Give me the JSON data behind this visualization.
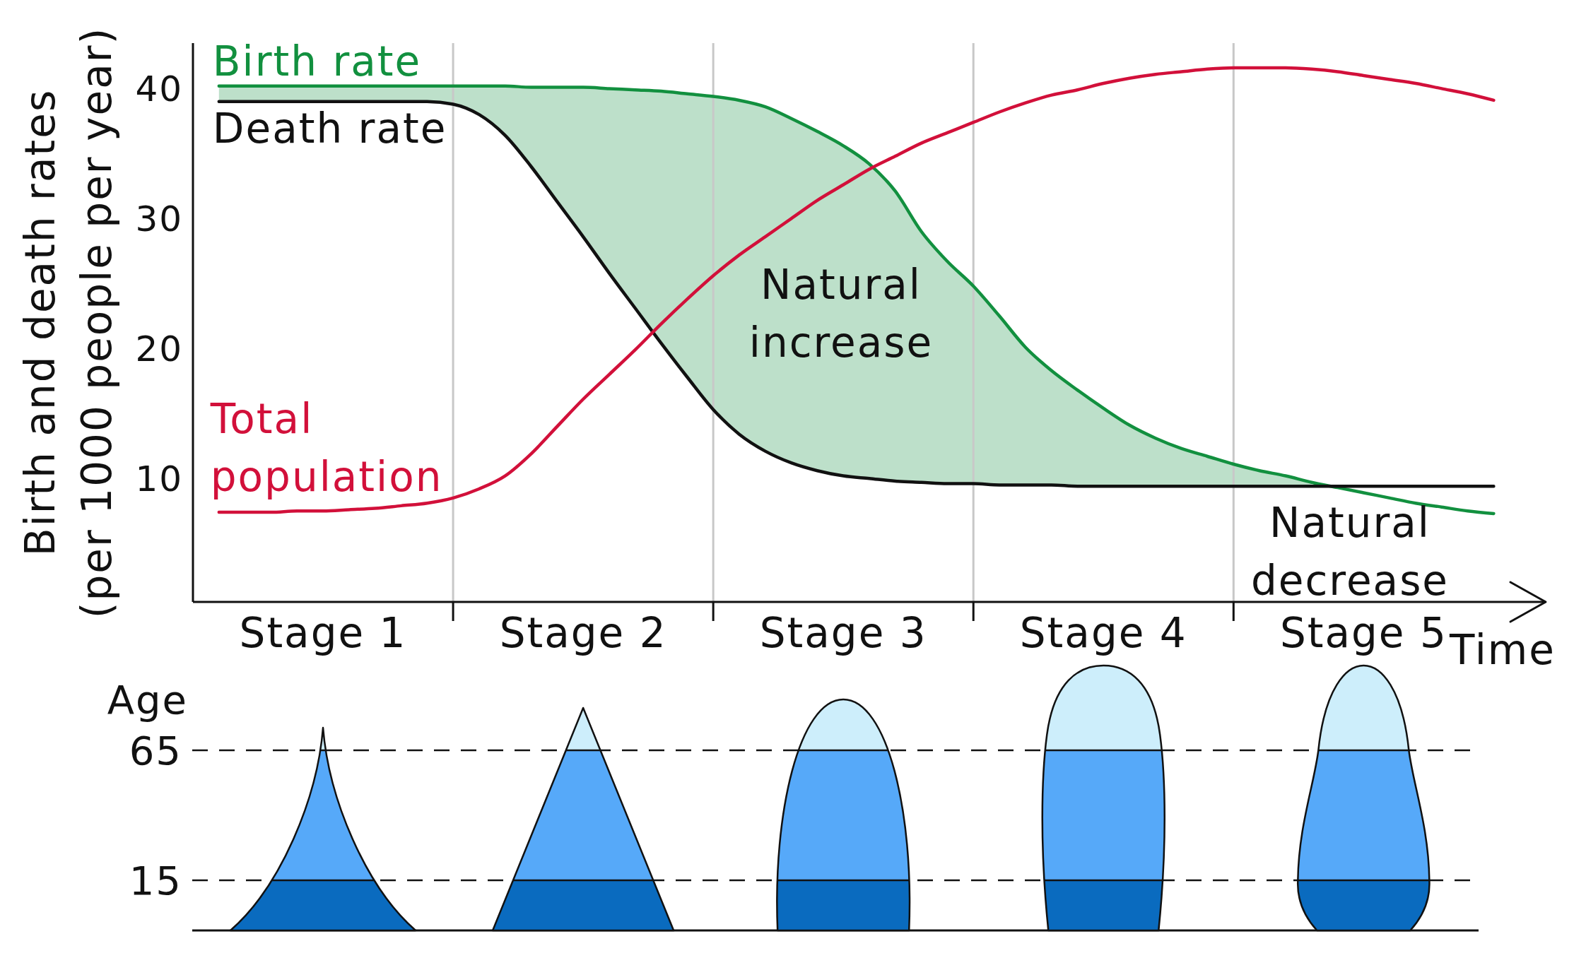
{
  "chart_data": {
    "type": "line",
    "xlabel": "Time",
    "ylabel": "Birth and death rates (per 1000 people per year)",
    "categories": [
      null,
      null,
      null,
      null,
      null,
      "Stage 1",
      null,
      null,
      null,
      null,
      null,
      null,
      null,
      null,
      null,
      "Stage 2",
      null,
      null,
      null,
      null,
      null,
      null,
      null,
      null,
      null,
      "Stage 3",
      null,
      null,
      null,
      null,
      null,
      null,
      null,
      null,
      null,
      "Stage 4",
      null,
      null,
      null,
      null,
      null,
      null,
      null,
      null,
      null,
      "Stage 5",
      null,
      null,
      null,
      null,
      null,
      null,
      null
    ],
    "ylim": [
      0.5,
      43.5
    ],
    "yticks": [
      10,
      20,
      30,
      40
    ],
    "grid": "x",
    "marker": "none",
    "line_style": "solid",
    "series": [
      {
        "name": "Birth rate",
        "color": "#12903f",
        "values": [
          null,
          40.2,
          40.2,
          40.2,
          40.2,
          40.2,
          40.2,
          40.2,
          40.2,
          40.2,
          40.2,
          40.2,
          40.2,
          40.1,
          40.1,
          40.1,
          40.0,
          39.9,
          39.8,
          39.6,
          39.4,
          39.1,
          38.6,
          37.7,
          36.7,
          35.6,
          34.2,
          32.1,
          29.0,
          26.7,
          24.8,
          22.5,
          20.1,
          18.3,
          16.8,
          15.4,
          14.1,
          13.1,
          12.3,
          11.7,
          11.1,
          10.6,
          10.2,
          9.7,
          9.3,
          8.9,
          8.5,
          8.1,
          7.8,
          7.5,
          7.3,
          null,
          null
        ],
        "lower": [
          null,
          39.0,
          39.0,
          39.0,
          39.0,
          39.0,
          39.0,
          39.0,
          39.0,
          39.0,
          38.8,
          38.0,
          36.4,
          34.0,
          31.3,
          28.6,
          25.8,
          23.1,
          20.4,
          17.8,
          15.3,
          13.4,
          12.1,
          11.2,
          10.6,
          10.2,
          10.0,
          9.8,
          9.7,
          9.6,
          9.6,
          9.5,
          9.5,
          9.5,
          9.4,
          9.4,
          9.4,
          9.4,
          9.4,
          9.4,
          9.4,
          9.4,
          9.4,
          9.4,
          null,
          null,
          null,
          null,
          null,
          null,
          null,
          null,
          null
        ],
        "upper": [
          null,
          40.2,
          40.2,
          40.2,
          40.2,
          40.2,
          40.2,
          40.2,
          40.2,
          40.2,
          40.2,
          40.2,
          40.2,
          40.1,
          40.1,
          40.1,
          40.0,
          39.9,
          39.8,
          39.6,
          39.4,
          39.1,
          38.6,
          37.7,
          36.7,
          35.6,
          34.2,
          32.1,
          29.0,
          26.7,
          24.8,
          22.5,
          20.1,
          18.3,
          16.8,
          15.4,
          14.1,
          13.1,
          12.3,
          11.7,
          11.1,
          10.6,
          10.2,
          9.7,
          null,
          null,
          null,
          null,
          null,
          null,
          null,
          null,
          null
        ]
      },
      {
        "name": "Death rate",
        "color": "#111111",
        "values": [
          null,
          39.0,
          39.0,
          39.0,
          39.0,
          39.0,
          39.0,
          39.0,
          39.0,
          39.0,
          38.8,
          38.0,
          36.4,
          34.0,
          31.3,
          28.6,
          25.8,
          23.1,
          20.4,
          17.8,
          15.3,
          13.4,
          12.1,
          11.2,
          10.6,
          10.2,
          10.0,
          9.8,
          9.7,
          9.6,
          9.6,
          9.5,
          9.5,
          9.5,
          9.4,
          9.4,
          9.4,
          9.4,
          9.4,
          9.4,
          9.4,
          9.4,
          9.4,
          9.4,
          9.4,
          9.4,
          9.4,
          9.4,
          9.4,
          9.4,
          9.4,
          null,
          null
        ]
      },
      {
        "name": "Total population",
        "color": "#d2103a",
        "values": [
          null,
          7.4,
          7.4,
          7.4,
          7.5,
          7.5,
          7.6,
          7.7,
          7.9,
          8.1,
          8.5,
          9.2,
          10.2,
          11.9,
          14.0,
          16.1,
          18.0,
          19.9,
          21.9,
          23.8,
          25.6,
          27.2,
          28.6,
          30.0,
          31.4,
          32.6,
          33.8,
          34.8,
          35.8,
          36.6,
          37.4,
          38.2,
          38.9,
          39.5,
          39.9,
          40.4,
          40.8,
          41.1,
          41.3,
          41.5,
          41.6,
          41.6,
          41.6,
          41.5,
          41.3,
          41.0,
          40.7,
          40.4,
          40.0,
          39.6,
          39.1,
          null,
          null
        ]
      }
    ],
    "annotations": [
      "Natural increase",
      "Natural decrease",
      "Age",
      "65",
      "15"
    ]
  }
}
